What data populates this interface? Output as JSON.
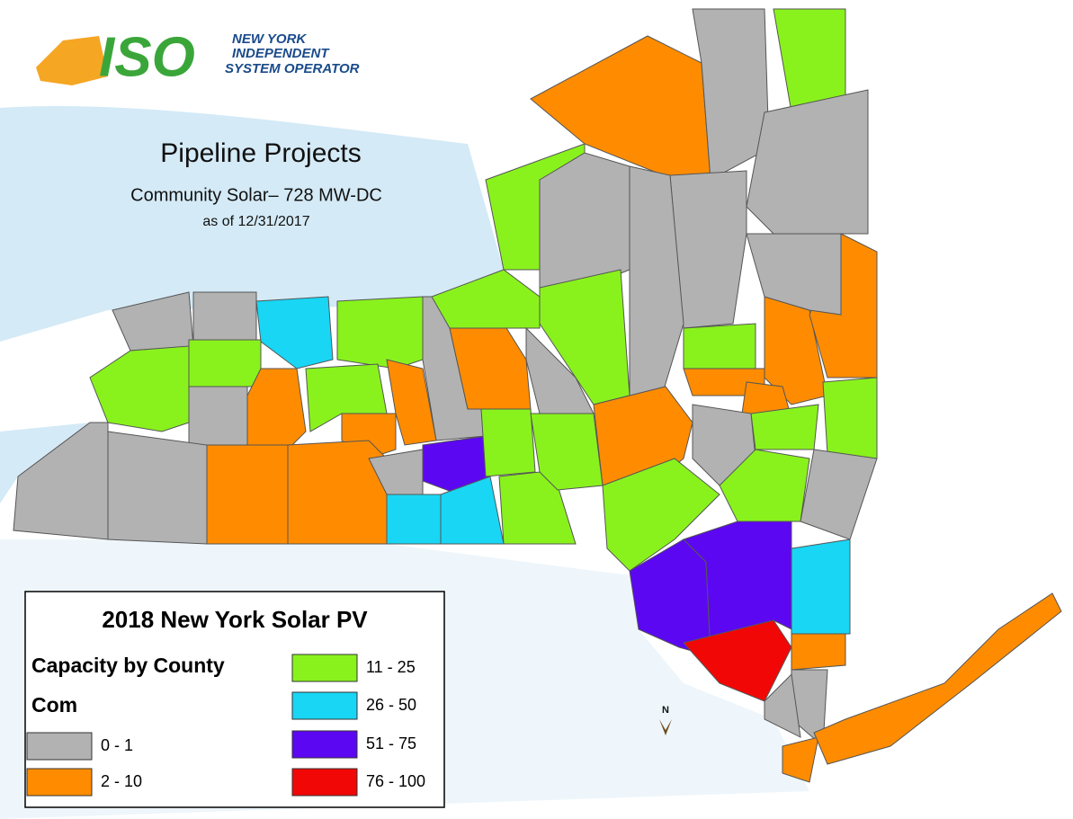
{
  "logo": {
    "mark": "ISO",
    "line1": "NEW YORK",
    "line2": "INDEPENDENT",
    "line3": "SYSTEM OPERATOR"
  },
  "title": "Pipeline Projects",
  "subtitle": "Community Solar– 728 MW-DC",
  "date": "as of 12/31/2017",
  "north": "N",
  "legend": {
    "title": "2018 New York Solar PV",
    "heading": "Capacity by County",
    "layer": "Com",
    "items": [
      {
        "label": "0 - 1",
        "color": "#b2b2b2"
      },
      {
        "label": "2 - 10",
        "color": "#ff8c00"
      },
      {
        "label": "11 - 25",
        "color": "#89f21d"
      },
      {
        "label": "26 - 50",
        "color": "#18d6f4"
      },
      {
        "label": "51 - 75",
        "color": "#5c07f2"
      },
      {
        "label": "76 - 100",
        "color": "#f20707"
      }
    ]
  }
}
